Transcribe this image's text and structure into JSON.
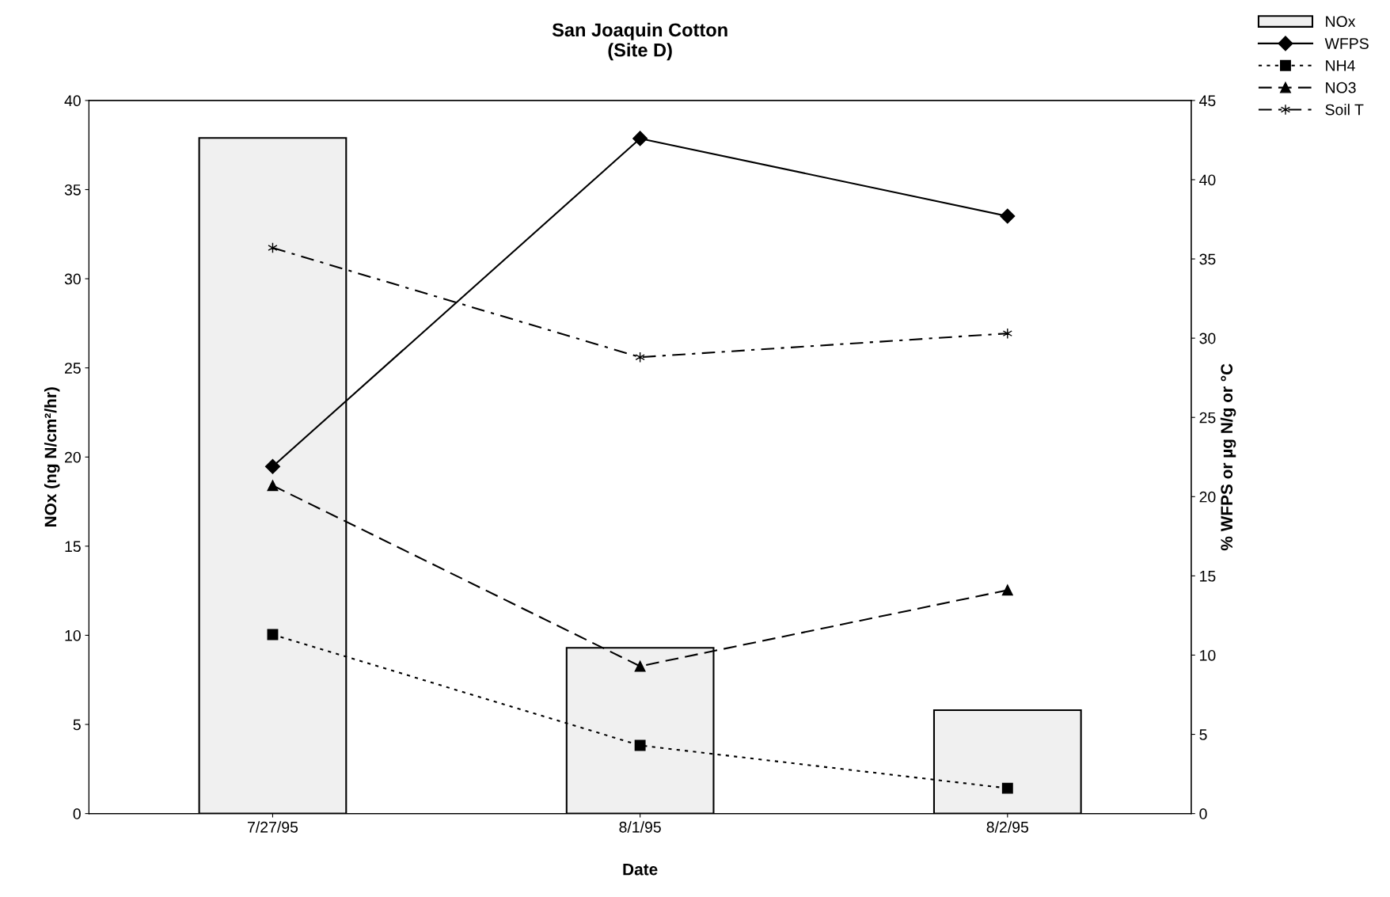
{
  "chart_data": {
    "type": "bar",
    "title": "San Joaquin Cotton\n(Site D)",
    "xlabel": "Date",
    "ylabel": "NOx (ng N/cm²/hr)",
    "y2label": "% WFPS or µg N/g or °C",
    "categories": [
      "7/27/95",
      "8/1/95",
      "8/2/95"
    ],
    "ylim": [
      0,
      40
    ],
    "yticks": [
      0,
      5,
      10,
      15,
      20,
      25,
      30,
      35,
      40
    ],
    "y2lim": [
      0,
      45
    ],
    "y2ticks": [
      0,
      5,
      10,
      15,
      20,
      25,
      30,
      35,
      40,
      45
    ],
    "grid": false,
    "legend": "top right",
    "series": [
      {
        "name": "NOx",
        "color": "#f0f0f0",
        "values": [
          37.9,
          9.3,
          5.8
        ]
      },
      {
        "name": "WFPS",
        "type": "line",
        "axis": "y2",
        "color": "#000000",
        "marker": "diamond",
        "line_style": "solid",
        "values": [
          21.9,
          42.6,
          37.7
        ]
      },
      {
        "name": "NH4",
        "type": "line",
        "axis": "y2",
        "color": "#000000",
        "marker": "square",
        "line_style": "dotted",
        "values": [
          11.3,
          4.3,
          1.6
        ]
      },
      {
        "name": "NO3",
        "type": "line",
        "axis": "y2",
        "color": "#000000",
        "marker": "triangle",
        "line_style": "dashed",
        "values": [
          20.7,
          9.3,
          14.1
        ]
      },
      {
        "name": "Soil T",
        "type": "line",
        "axis": "y2",
        "color": "#000000",
        "marker": "cross",
        "line_style": "dashdot",
        "values": [
          35.7,
          28.8,
          30.3
        ]
      }
    ]
  }
}
